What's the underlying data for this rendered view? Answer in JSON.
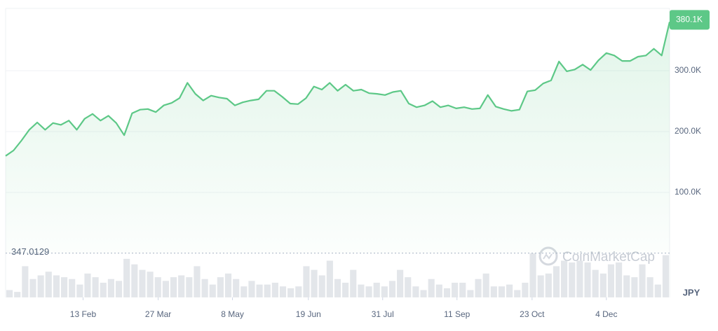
{
  "chart_data": {
    "type": "line",
    "values": [
      160000,
      169000,
      185000,
      203000,
      215000,
      203000,
      214000,
      211000,
      218000,
      203000,
      221000,
      229000,
      218000,
      226000,
      214000,
      194000,
      230000,
      236000,
      237000,
      232000,
      243000,
      247000,
      255000,
      280000,
      262000,
      251000,
      259000,
      256000,
      254000,
      243000,
      248000,
      251000,
      253000,
      267000,
      267000,
      257000,
      246000,
      245000,
      255000,
      274000,
      269000,
      280000,
      267000,
      277000,
      267000,
      269000,
      263000,
      262000,
      260000,
      265000,
      267000,
      246000,
      240000,
      243000,
      250000,
      240000,
      243000,
      238000,
      240000,
      237000,
      238000,
      260000,
      241000,
      237000,
      234000,
      236000,
      266000,
      268000,
      279000,
      284000,
      315000,
      299000,
      302000,
      310000,
      301000,
      317000,
      329000,
      325000,
      316000,
      316000,
      323000,
      325000,
      336000,
      325000,
      380100
    ],
    "value_labels": {
      "84": "380.1K"
    },
    "volume": [
      8,
      6,
      34,
      20,
      24,
      28,
      24,
      22,
      20,
      14,
      26,
      22,
      16,
      20,
      18,
      42,
      36,
      30,
      28,
      22,
      18,
      22,
      24,
      22,
      34,
      20,
      14,
      22,
      26,
      20,
      12,
      18,
      14,
      14,
      16,
      12,
      10,
      12,
      34,
      30,
      24,
      40,
      20,
      16,
      30,
      14,
      12,
      16,
      12,
      18,
      30,
      22,
      12,
      8,
      20,
      14,
      10,
      16,
      16,
      8,
      20,
      26,
      12,
      12,
      14,
      8,
      16,
      48,
      24,
      26,
      34,
      40,
      38,
      40,
      38,
      30,
      26,
      36,
      38,
      24,
      22,
      36,
      22,
      14,
      46
    ],
    "color": "#5dc887",
    "ylim": [
      0,
      400000
    ],
    "xlim": [
      0,
      84
    ],
    "yticks": [
      {
        "value": 100000,
        "label": "100.0K"
      },
      {
        "value": 200000,
        "label": "200.0K"
      },
      {
        "value": 300000,
        "label": "300.0K"
      }
    ],
    "xticks": [
      {
        "value": 9.8,
        "label": "13 Feb"
      },
      {
        "value": 19.3,
        "label": "27 Mar"
      },
      {
        "value": 28.7,
        "label": "8 May"
      },
      {
        "value": 38.3,
        "label": "19 Jun"
      },
      {
        "value": 47.7,
        "label": "31 Jul"
      },
      {
        "value": 57.1,
        "label": "11 Sep"
      },
      {
        "value": 66.6,
        "label": "23 Oct"
      },
      {
        "value": 76.0,
        "label": "4 Dec"
      }
    ],
    "baseline": {
      "value": 347.0129,
      "label": "347.0129"
    },
    "currency": "JPY",
    "watermark": "CoinMarketCap",
    "grid": true
  }
}
